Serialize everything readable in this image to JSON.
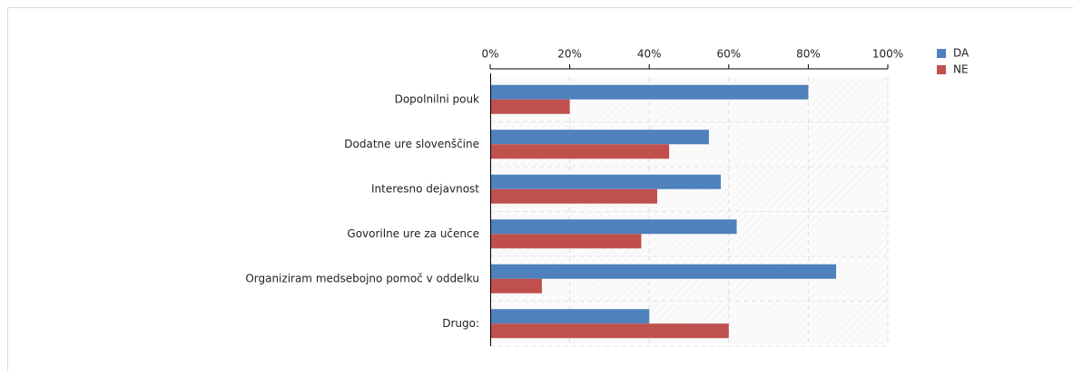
{
  "chart_data": {
    "type": "bar",
    "orientation": "horizontal",
    "categories": [
      "Dopolnilni pouk",
      "Dodatne ure slovenščine",
      "Interesno dejavnost",
      "Govorilne ure za učence",
      "Organiziram medsebojno pomoč v oddelku",
      "Drugo:"
    ],
    "series": [
      {
        "name": "DA",
        "color": "#4f81bd",
        "values": [
          80,
          55,
          58,
          62,
          87,
          40
        ]
      },
      {
        "name": "NE",
        "color": "#c0504d",
        "values": [
          20,
          45,
          42,
          38,
          13,
          60
        ]
      }
    ],
    "xlim": [
      0,
      100
    ],
    "xticks": [
      {
        "value": 0,
        "label": "0%"
      },
      {
        "value": 20,
        "label": "20%"
      },
      {
        "value": 40,
        "label": "40%"
      },
      {
        "value": 60,
        "label": "60%"
      },
      {
        "value": 80,
        "label": "80%"
      },
      {
        "value": 100,
        "label": "100%"
      }
    ],
    "grid": true,
    "legend": "top-right"
  }
}
